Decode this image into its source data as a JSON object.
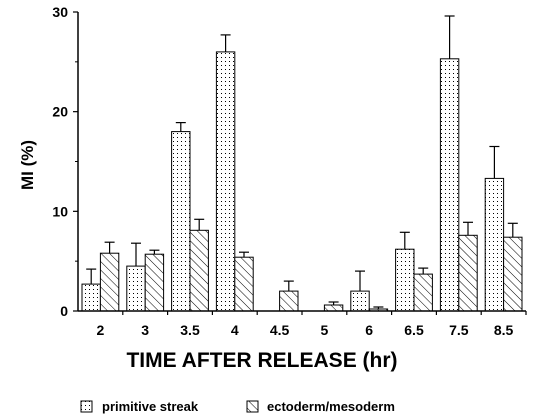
{
  "chart_data": {
    "type": "bar",
    "xlabel": "TIME AFTER RELEASE (hr)",
    "ylabel": "MI (%)",
    "ylim": [
      0,
      30
    ],
    "yticks": [
      0,
      10,
      20,
      30
    ],
    "categories": [
      "2",
      "3",
      "3.5",
      "4",
      "4.5",
      "5",
      "6",
      "6.5",
      "7.5",
      "8.5"
    ],
    "series": [
      {
        "name": "primitive streak",
        "pattern": "dots",
        "values": [
          2.7,
          4.5,
          18.0,
          26.0,
          0,
          0,
          2.0,
          6.2,
          25.3,
          13.3
        ],
        "errors": [
          1.5,
          2.3,
          0.9,
          1.7,
          0,
          0,
          2.0,
          1.7,
          4.3,
          3.2
        ]
      },
      {
        "name": "ectoderm/mesoderm",
        "pattern": "hatch",
        "values": [
          5.8,
          5.7,
          8.1,
          5.4,
          2.0,
          0.6,
          0.2,
          3.7,
          7.6,
          7.4
        ],
        "errors": [
          1.1,
          0.4,
          1.1,
          0.5,
          1.0,
          0.3,
          0.2,
          0.6,
          1.3,
          1.4
        ]
      }
    ],
    "legend_position": "bottom"
  }
}
